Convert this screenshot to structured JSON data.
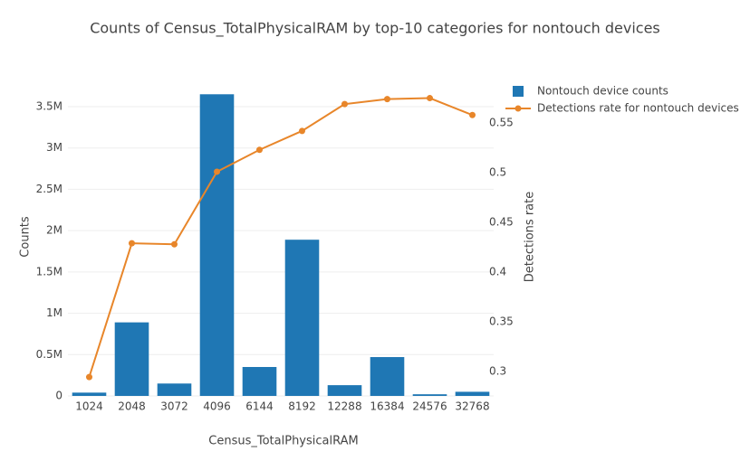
{
  "chart_data": {
    "type": "bar_line",
    "title": "Counts of Census_TotalPhysicalRAM by top-10 categories for nontouch devices",
    "x_label": "Census_TotalPhysicalRAM",
    "y_label": "Counts",
    "y2_label": "Detections rate",
    "categories": [
      "1024",
      "2048",
      "3072",
      "4096",
      "6144",
      "8192",
      "12288",
      "16384",
      "24576",
      "32768"
    ],
    "series": [
      {
        "name": "Nontouch device counts",
        "type": "bar",
        "color": "#1f77b4",
        "values": [
          40000,
          890000,
          150000,
          3650000,
          350000,
          1890000,
          130000,
          470000,
          20000,
          50000
        ]
      },
      {
        "name": "Detections rate for nontouch devices",
        "type": "line",
        "axis": "y2",
        "color": "#e8862a",
        "values": [
          0.2945,
          0.429,
          0.428,
          0.501,
          0.523,
          0.542,
          0.569,
          0.574,
          0.575,
          0.558
        ]
      }
    ],
    "ylim": [
      0,
      3850000
    ],
    "yticks": [
      0,
      {
        "value": 500000,
        "label": "0.5M"
      },
      {
        "value": 1000000,
        "label": "1M"
      },
      {
        "value": 1500000,
        "label": "1.5M"
      },
      {
        "value": 2000000,
        "label": "2M"
      },
      {
        "value": 2500000,
        "label": "2.5M"
      },
      {
        "value": 3000000,
        "label": "3M"
      },
      {
        "value": 3500000,
        "label": "3.5M"
      }
    ],
    "y2lim": [
      0.2755,
      0.5955
    ],
    "y2ticks": [
      0.3,
      0.35,
      0.4,
      0.45,
      0.5,
      0.55
    ],
    "grid": true
  }
}
